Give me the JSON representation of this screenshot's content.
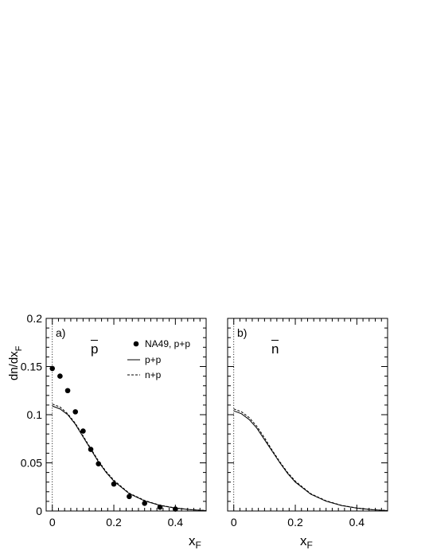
{
  "chart_data": [
    {
      "type": "line",
      "panel_label": "a)",
      "particle_label": "p",
      "ylabel": "dn/dx",
      "ylabel_sub": "F",
      "xlabel": "x",
      "xlabel_sub": "F",
      "xlim": [
        -0.02,
        0.5
      ],
      "ylim": [
        0,
        0.2
      ],
      "x_ticks": [
        0,
        0.2,
        0.4
      ],
      "x_tick_labels": [
        "0",
        "0.2",
        "0.4"
      ],
      "y_ticks": [
        0,
        0.05,
        0.1,
        0.15,
        0.2
      ],
      "y_tick_labels": [
        "0",
        "0.05",
        "0.1",
        "0.15",
        "0.2"
      ],
      "legend_position": "top-right",
      "grid": false,
      "series": [
        {
          "name": "NA49, p+p",
          "style": "points",
          "x": [
            0,
            0.025,
            0.05,
            0.075,
            0.1,
            0.125,
            0.15,
            0.2,
            0.25,
            0.3,
            0.35,
            0.4
          ],
          "values": [
            0.148,
            0.14,
            0.125,
            0.103,
            0.083,
            0.064,
            0.049,
            0.028,
            0.015,
            0.008,
            0.004,
            0.002
          ]
        },
        {
          "name": "p+p",
          "style": "solid",
          "x": [
            0,
            0.025,
            0.05,
            0.075,
            0.1,
            0.125,
            0.15,
            0.175,
            0.2,
            0.25,
            0.3,
            0.35,
            0.4,
            0.45,
            0.5
          ],
          "values": [
            0.109,
            0.106,
            0.1,
            0.09,
            0.077,
            0.064,
            0.051,
            0.04,
            0.031,
            0.018,
            0.0105,
            0.0058,
            0.003,
            0.0013,
            0.0004
          ]
        },
        {
          "name": "n+p",
          "style": "dashed",
          "x": [
            0,
            0.025,
            0.05,
            0.075,
            0.1,
            0.125,
            0.15,
            0.175,
            0.2,
            0.25,
            0.3,
            0.35,
            0.4,
            0.45,
            0.5
          ],
          "values": [
            0.111,
            0.108,
            0.101,
            0.091,
            0.078,
            0.065,
            0.052,
            0.041,
            0.032,
            0.0185,
            0.011,
            0.006,
            0.0032,
            0.0014,
            0.0005
          ]
        }
      ]
    },
    {
      "type": "line",
      "panel_label": "b)",
      "particle_label": "n",
      "xlabel": "x",
      "xlabel_sub": "F",
      "xlim": [
        -0.02,
        0.5
      ],
      "ylim": [
        0,
        0.2
      ],
      "x_ticks": [
        0,
        0.2,
        0.4
      ],
      "x_tick_labels": [
        "0",
        "0.2",
        "0.4"
      ],
      "grid": false,
      "series": [
        {
          "style": "solid",
          "x": [
            0,
            0.025,
            0.05,
            0.075,
            0.1,
            0.125,
            0.15,
            0.175,
            0.2,
            0.25,
            0.3,
            0.35,
            0.4,
            0.45,
            0.5
          ],
          "values": [
            0.104,
            0.101,
            0.095,
            0.086,
            0.074,
            0.062,
            0.05,
            0.039,
            0.03,
            0.0175,
            0.0102,
            0.0057,
            0.003,
            0.0013,
            0.0004
          ]
        },
        {
          "style": "dashed",
          "x": [
            0,
            0.025,
            0.05,
            0.075,
            0.1,
            0.125,
            0.15,
            0.175,
            0.2,
            0.25,
            0.3,
            0.35,
            0.4,
            0.45,
            0.5
          ],
          "values": [
            0.106,
            0.103,
            0.097,
            0.088,
            0.076,
            0.063,
            0.051,
            0.04,
            0.031,
            0.018,
            0.0106,
            0.0059,
            0.0031,
            0.0014,
            0.0005
          ]
        }
      ]
    }
  ]
}
